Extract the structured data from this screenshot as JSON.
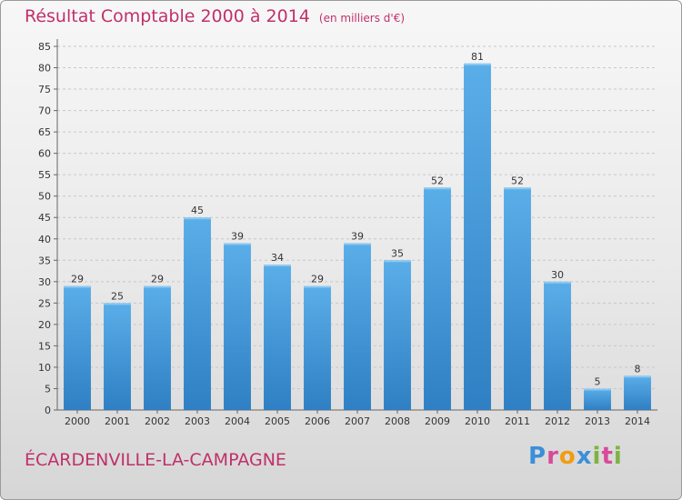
{
  "chart_data": {
    "type": "bar",
    "title": "Résultat Comptable 2000 à 2014",
    "unit_note": "(en milliers d'€)",
    "categories": [
      "2000",
      "2001",
      "2002",
      "2003",
      "2004",
      "2005",
      "2006",
      "2007",
      "2008",
      "2009",
      "2010",
      "2011",
      "2012",
      "2013",
      "2014"
    ],
    "values": [
      29,
      25,
      29,
      45,
      39,
      34,
      29,
      39,
      35,
      52,
      81,
      52,
      30,
      5,
      8
    ],
    "ylim": [
      0,
      85
    ],
    "yticks": [
      0,
      5,
      10,
      15,
      20,
      25,
      30,
      35,
      40,
      45,
      50,
      55,
      60,
      65,
      70,
      75,
      80,
      85
    ],
    "grid": true,
    "bar_color": "#4d9fde"
  },
  "commune": "ÉCARDENVILLE-LA-CAMPAGNE",
  "brand": {
    "letters": [
      "P",
      "r",
      "o",
      "x",
      "i",
      "t",
      "i"
    ],
    "colors": [
      "#3b8fd9",
      "#d84a9a",
      "#f39c12",
      "#3b8fd9",
      "#7cb342",
      "#d84a9a",
      "#7cb342"
    ]
  }
}
